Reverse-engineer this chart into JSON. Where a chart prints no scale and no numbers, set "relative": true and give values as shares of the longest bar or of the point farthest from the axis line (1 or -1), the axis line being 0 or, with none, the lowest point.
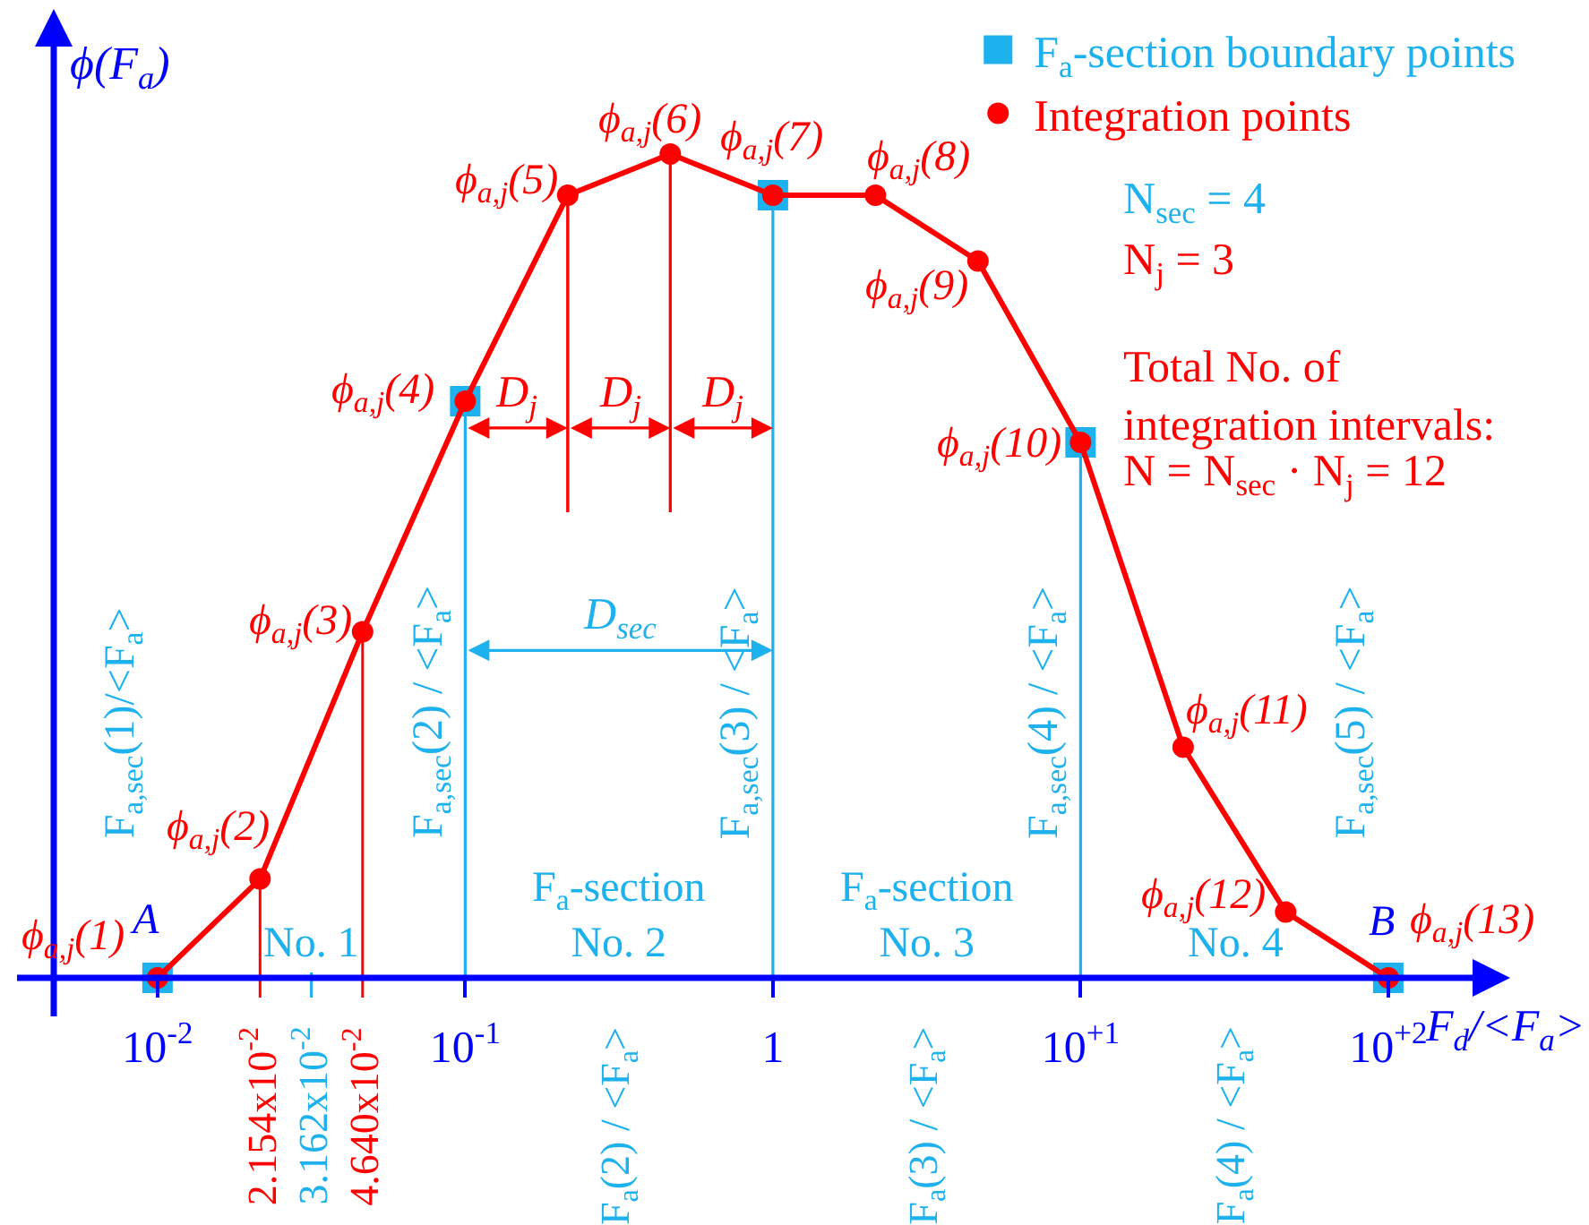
{
  "chart_data": {
    "type": "line",
    "relative": true,
    "log": "x",
    "xlabel": "F$_{d}$/<F$_{a}$>",
    "ylabel": "ϕ(F$_{a}$)",
    "xlim": [
      0.0046,
      249
    ],
    "xticks": [
      {
        "value": 0.01,
        "label": "10$^{-2}$"
      },
      {
        "value": 0.1,
        "label": "10$^{-1}$"
      },
      1,
      {
        "value": 10,
        "label": "10$^{+1}$"
      },
      {
        "value": 100,
        "label": "10$^{+2}$"
      }
    ],
    "legend": "top right",
    "line_style": "solid",
    "series": [
      {
        "name": "F$_{a}$-section boundary points",
        "type": "lollipop",
        "marker": "square",
        "color": "#1db1ee",
        "x": [
          0.01,
          0.1,
          1,
          10,
          100
        ],
        "values": [
          0,
          0.7,
          0.95,
          0.65,
          0
        ]
      },
      {
        "name": "Integration points",
        "marker": "circle",
        "color": "#ff0000",
        "x": [
          0.01,
          0.02154,
          0.0464,
          0.1,
          0.2154,
          0.464,
          1,
          2.154,
          4.64,
          10,
          21.54,
          46.4,
          100
        ],
        "values": [
          0,
          0.12,
          0.42,
          0.7,
          0.95,
          1,
          0.95,
          0.95,
          0.87,
          0.65,
          0.28,
          0.08,
          0
        ]
      }
    ],
    "annotations": [
      {
        "text": "ϕ$_{a,j}$(1)",
        "x": 0.01,
        "y": 0
      },
      {
        "text": "ϕ$_{a,j}$(2)",
        "x": 0.02154,
        "y": 0.12
      },
      {
        "text": "ϕ$_{a,j}$(3)",
        "x": 0.0464,
        "y": 0.42
      },
      {
        "text": "ϕ$_{a,j}$(4)",
        "x": 0.1,
        "y": 0.7
      },
      {
        "text": "ϕ$_{a,j}$(5)",
        "x": 0.2154,
        "y": 0.95
      },
      {
        "text": "ϕ$_{a,j}$(6)",
        "x": 0.464,
        "y": 1
      },
      {
        "text": "ϕ$_{a,j}$(7)",
        "x": 1,
        "y": 0.95
      },
      {
        "text": "ϕ$_{a,j}$(8)",
        "x": 2.154,
        "y": 0.95
      },
      {
        "text": "ϕ$_{a,j}$(9)",
        "x": 4.64,
        "y": 0.87
      },
      {
        "text": "ϕ$_{a,j}$(10)",
        "x": 10,
        "y": 0.65
      },
      {
        "text": "ϕ$_{a,j}$(11)",
        "x": 21.54,
        "y": 0.28
      },
      {
        "text": "ϕ$_{a,j}$(12)",
        "x": 46.4,
        "y": 0.08
      },
      {
        "text": "ϕ$_{a,j}$(13)",
        "x": 100,
        "y": 0
      },
      {
        "text": "A",
        "x": 0.01,
        "y": 0
      },
      {
        "text": "B",
        "x": 100,
        "y": 0
      },
      "F$_{a,sec}$(1)/<F$_{a}$>",
      "F$_{a,sec}$(2) / <F$_{a}$>",
      "F$_{a,sec}$(3) / <F$_{a}$>",
      "F$_{a,sec}$(4) / <F$_{a}$>",
      "F$_{a,sec}$(5) / <F$_{a}$>",
      "No. 1",
      "F$_{a}$-section\nNo. 2",
      "F$_{a}$-section\nNo. 3",
      "No. 4",
      "D$_{j}$",
      "D$_{j}$",
      "D$_{j}$",
      "D$_{sec}$",
      "N$_{sec}$ = 4",
      "N$_{j}$ = 3",
      "Total No. of\nintegration intervals:",
      "N = N$_{sec}$ · N$_{j}$ = 12",
      "2.154x10$^{-2}$",
      "3.162x10$^{-2}$",
      "4.640x10$^{-2}$",
      "F$_{a}$(2) / <F$_{a}$>",
      "F$_{a}$(3) / <F$_{a}$>",
      "F$_{a}$(4) / <F$_{a}$>"
    ]
  }
}
